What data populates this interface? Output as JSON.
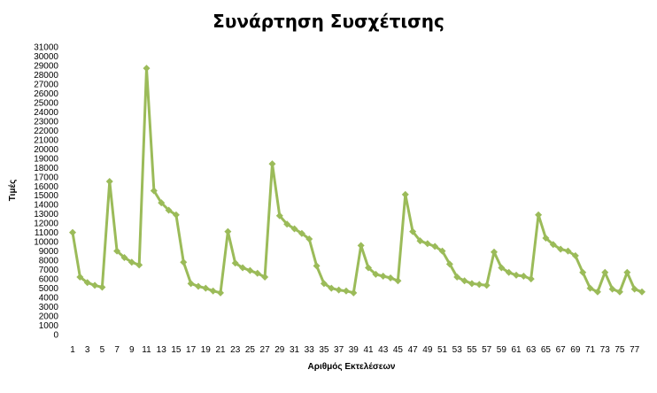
{
  "chart_data": {
    "type": "line",
    "title": "Συνάρτηση Συσχέτισης",
    "xlabel": "Αριθμός Εκτελέσεων",
    "ylabel": "Τιμές",
    "x": [
      1,
      2,
      3,
      4,
      5,
      6,
      7,
      8,
      9,
      10,
      11,
      12,
      13,
      14,
      15,
      16,
      17,
      18,
      19,
      20,
      21,
      22,
      23,
      24,
      25,
      26,
      27,
      28,
      29,
      30,
      31,
      32,
      33,
      34,
      35,
      36,
      37,
      38,
      39,
      40,
      41,
      42,
      43,
      44,
      45,
      46,
      47,
      48,
      49,
      50,
      51,
      52,
      53,
      54,
      55,
      56,
      57,
      58,
      59,
      60,
      61,
      62,
      63,
      64,
      65,
      66,
      67,
      68,
      69,
      70,
      71,
      72,
      73,
      74,
      75,
      76,
      77,
      78
    ],
    "x_tick_labels": [
      1,
      3,
      5,
      7,
      9,
      11,
      13,
      15,
      17,
      19,
      21,
      23,
      25,
      27,
      29,
      31,
      33,
      35,
      37,
      39,
      41,
      43,
      45,
      47,
      49,
      51,
      53,
      55,
      57,
      59,
      61,
      63,
      65,
      67,
      69,
      71,
      73,
      75,
      77
    ],
    "ylim": [
      0,
      31000
    ],
    "y_ticks": [
      0,
      1000,
      2000,
      3000,
      4000,
      5000,
      6000,
      7000,
      8000,
      9000,
      10000,
      11000,
      12000,
      13000,
      14000,
      15000,
      16000,
      17000,
      18000,
      19000,
      20000,
      21000,
      22000,
      23000,
      24000,
      25000,
      26000,
      27000,
      28000,
      29000,
      30000,
      31000
    ],
    "grid": false,
    "legend": "none",
    "series": [
      {
        "color": "#9bbb59",
        "marker": "diamond",
        "values": [
          11000,
          6200,
          5600,
          5300,
          5100,
          16500,
          9000,
          8300,
          7800,
          7500,
          28700,
          15500,
          14200,
          13400,
          12900,
          7800,
          5500,
          5200,
          5000,
          4700,
          4500,
          11100,
          7700,
          7200,
          6900,
          6600,
          6200,
          18400,
          12800,
          11900,
          11400,
          10900,
          10300,
          7400,
          5500,
          5000,
          4800,
          4700,
          4500,
          9600,
          7200,
          6500,
          6300,
          6100,
          5800,
          15100,
          11100,
          10100,
          9800,
          9500,
          9000,
          7600,
          6200,
          5800,
          5500,
          5400,
          5300,
          8900,
          7200,
          6700,
          6400,
          6300,
          6000,
          12900,
          10400,
          9700,
          9200,
          9000,
          8500,
          6700,
          5000,
          4600,
          6700,
          4900,
          4600,
          6700,
          4900,
          4600
        ]
      }
    ]
  }
}
